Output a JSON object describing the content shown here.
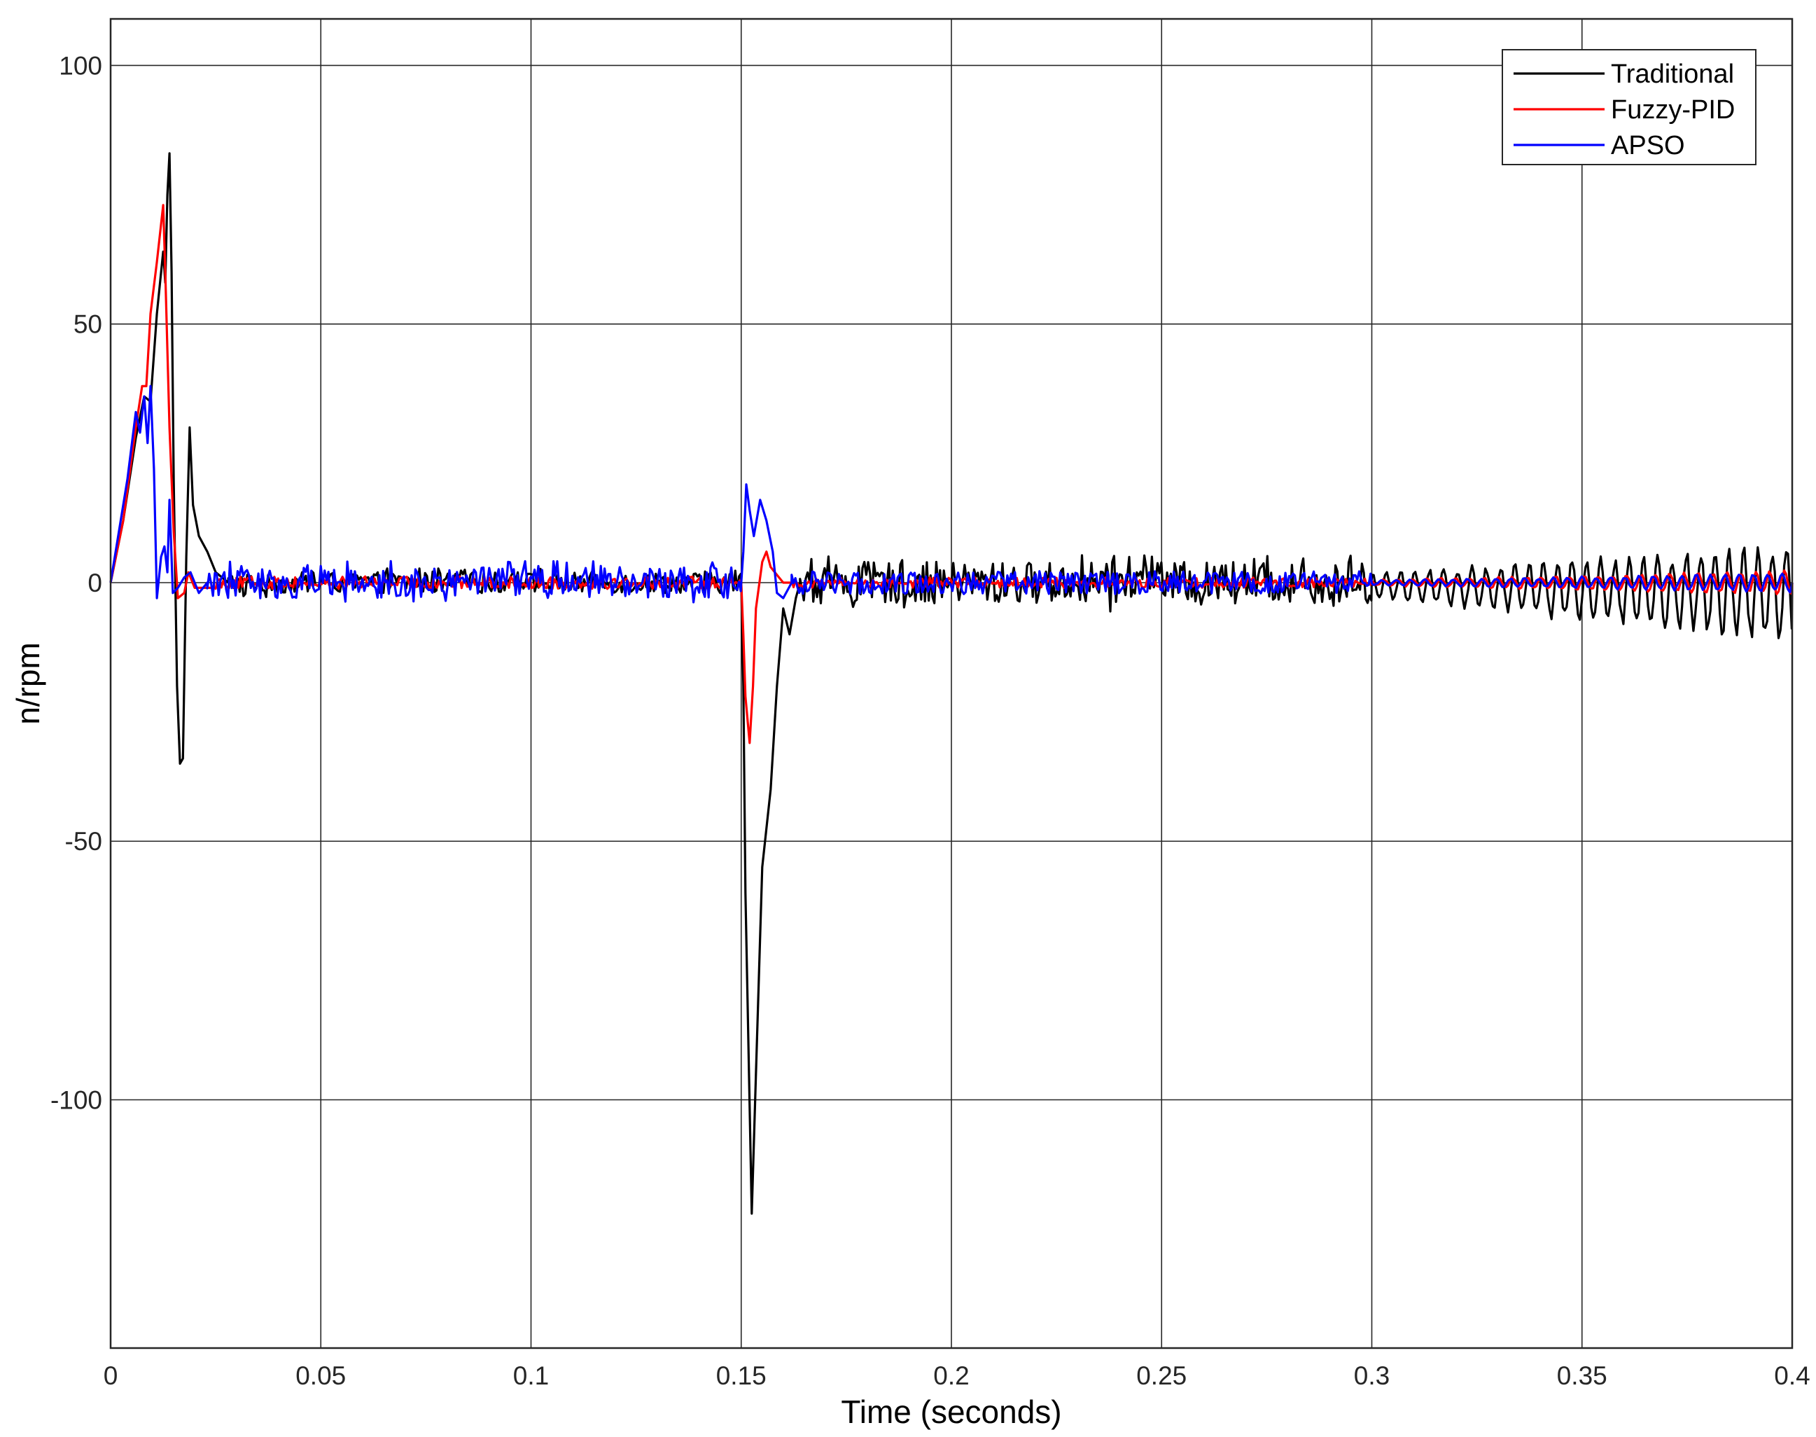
{
  "chart_data": {
    "type": "line",
    "xlabel": "Time (seconds)",
    "ylabel": "n/rpm",
    "xlim": [
      0,
      0.4
    ],
    "ylim": [
      -148,
      109
    ],
    "xticks": [
      {
        "value": 0,
        "label": "0"
      },
      {
        "value": 0.05,
        "label": "0.05"
      },
      {
        "value": 0.1,
        "label": "0.1"
      },
      {
        "value": 0.15,
        "label": "0.15"
      },
      {
        "value": 0.2,
        "label": "0.2"
      },
      {
        "value": 0.25,
        "label": "0.25"
      },
      {
        "value": 0.3,
        "label": "0.3"
      },
      {
        "value": 0.35,
        "label": "0.35"
      },
      {
        "value": 0.4,
        "label": "0.4"
      }
    ],
    "yticks": [
      {
        "value": 100,
        "label": "100"
      },
      {
        "value": 50,
        "label": "50"
      },
      {
        "value": 0,
        "label": "0"
      },
      {
        "value": -50,
        "label": "-50"
      },
      {
        "value": -100,
        "label": "-100"
      }
    ],
    "grid": true,
    "legend_position": "top-right",
    "series": [
      {
        "name": "Traditional",
        "color": "#000000",
        "points": [
          [
            0,
            0
          ],
          [
            0.003,
            12
          ],
          [
            0.006,
            28
          ],
          [
            0.008,
            36
          ],
          [
            0.0095,
            35
          ],
          [
            0.011,
            52
          ],
          [
            0.0125,
            64
          ],
          [
            0.013,
            58
          ],
          [
            0.0135,
            75
          ],
          [
            0.014,
            83
          ],
          [
            0.0145,
            60
          ],
          [
            0.015,
            20
          ],
          [
            0.0158,
            -20
          ],
          [
            0.0165,
            -35
          ],
          [
            0.0172,
            -34
          ],
          [
            0.018,
            5
          ],
          [
            0.0188,
            30
          ],
          [
            0.0196,
            15
          ],
          [
            0.021,
            9
          ],
          [
            0.023,
            6
          ],
          [
            0.025,
            2
          ],
          [
            0.028,
            0
          ]
        ],
        "noise_after_transient": [
          {
            "from": 0.028,
            "to": 0.15,
            "amplitude": 2
          },
          {
            "from": 0.164,
            "to": 0.3,
            "amplitude": 4
          },
          {
            "from": 0.3,
            "to": 0.4,
            "amplitude": 11
          }
        ],
        "second_transient": [
          [
            0.15,
            0
          ],
          [
            0.1505,
            -20
          ],
          [
            0.151,
            -60
          ],
          [
            0.1525,
            -122
          ],
          [
            0.1535,
            -95
          ],
          [
            0.155,
            -55
          ],
          [
            0.157,
            -40
          ],
          [
            0.1585,
            -20
          ],
          [
            0.16,
            -5
          ],
          [
            0.1615,
            -10
          ],
          [
            0.163,
            -3
          ],
          [
            0.164,
            0
          ]
        ]
      },
      {
        "name": "Fuzzy-PID",
        "color": "#ff0000",
        "points": [
          [
            0,
            0
          ],
          [
            0.003,
            12
          ],
          [
            0.006,
            30
          ],
          [
            0.0075,
            38
          ],
          [
            0.0085,
            38
          ],
          [
            0.0095,
            52
          ],
          [
            0.011,
            62
          ],
          [
            0.0125,
            73
          ],
          [
            0.013,
            60
          ],
          [
            0.014,
            30
          ],
          [
            0.015,
            10
          ],
          [
            0.016,
            -3
          ],
          [
            0.0175,
            -2
          ],
          [
            0.0185,
            2
          ],
          [
            0.02,
            -1
          ],
          [
            0.025,
            -1
          ]
        ],
        "noise_after_transient": [
          {
            "from": 0.025,
            "to": 0.15,
            "amplitude": 1.2
          },
          {
            "from": 0.162,
            "to": 0.3,
            "amplitude": 1.0
          },
          {
            "from": 0.3,
            "to": 0.4,
            "amplitude": 2.5
          }
        ],
        "second_transient": [
          [
            0.15,
            0
          ],
          [
            0.1505,
            -10
          ],
          [
            0.151,
            -22
          ],
          [
            0.152,
            -31
          ],
          [
            0.1528,
            -20
          ],
          [
            0.1535,
            -5
          ],
          [
            0.155,
            4
          ],
          [
            0.156,
            6
          ],
          [
            0.157,
            3
          ],
          [
            0.158,
            2
          ],
          [
            0.16,
            0
          ],
          [
            0.162,
            0
          ]
        ]
      },
      {
        "name": "APSO",
        "color": "#0000ff",
        "points": [
          [
            0,
            0
          ],
          [
            0.002,
            10
          ],
          [
            0.004,
            20
          ],
          [
            0.006,
            33
          ],
          [
            0.007,
            29
          ],
          [
            0.008,
            36
          ],
          [
            0.0088,
            27
          ],
          [
            0.0095,
            38
          ],
          [
            0.0103,
            22
          ],
          [
            0.011,
            -3
          ],
          [
            0.012,
            5
          ],
          [
            0.0128,
            7
          ],
          [
            0.0135,
            2
          ],
          [
            0.014,
            16
          ],
          [
            0.0148,
            -2
          ],
          [
            0.016,
            -1
          ],
          [
            0.0175,
            1
          ],
          [
            0.019,
            2
          ],
          [
            0.021,
            -2
          ],
          [
            0.023,
            0
          ]
        ],
        "noise_after_transient": [
          {
            "from": 0.023,
            "to": 0.15,
            "amplitude": 3
          },
          {
            "from": 0.162,
            "to": 0.3,
            "amplitude": 2.2
          },
          {
            "from": 0.3,
            "to": 0.4,
            "amplitude": 2
          }
        ],
        "second_transient": [
          [
            0.15,
            0
          ],
          [
            0.1505,
            6
          ],
          [
            0.1512,
            19
          ],
          [
            0.152,
            14
          ],
          [
            0.153,
            9
          ],
          [
            0.1545,
            16
          ],
          [
            0.156,
            12
          ],
          [
            0.1575,
            6
          ],
          [
            0.1585,
            -2
          ],
          [
            0.16,
            -3
          ],
          [
            0.162,
            0
          ]
        ]
      }
    ]
  }
}
